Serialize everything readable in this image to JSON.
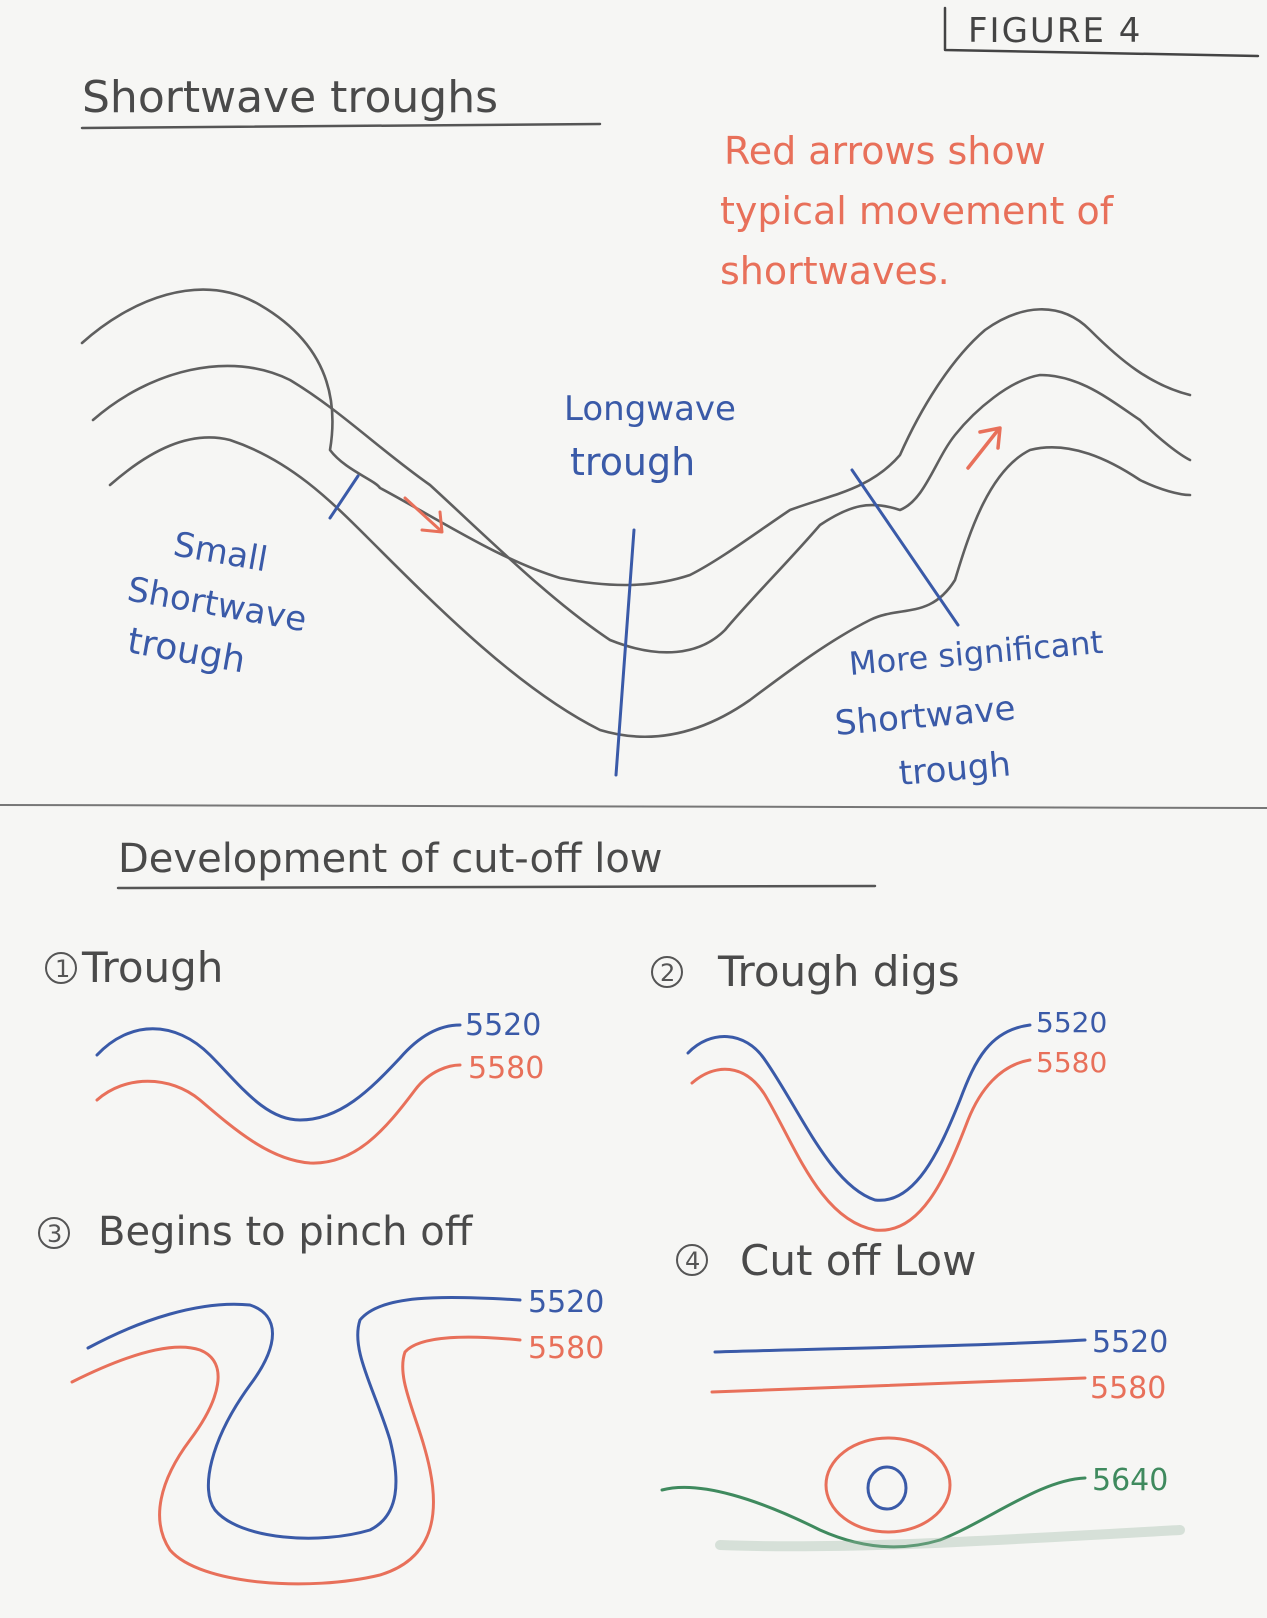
{
  "figure_label": "FIGURE 4",
  "top_section": {
    "title": "Shortwave troughs",
    "note_lines": [
      "Red arrows show",
      "typical movement of",
      "shortwaves."
    ],
    "longwave_label": [
      "Longwave",
      "trough"
    ],
    "small_shortwave_label": [
      "Small",
      "Shortwave",
      "trough"
    ],
    "significant_shortwave_label": [
      "More significant",
      "Shortwave",
      "trough"
    ]
  },
  "bottom_section": {
    "title": "Development of cut-off low",
    "panels": [
      {
        "number": "1",
        "title": "Trough",
        "contours": [
          "5520",
          "5580"
        ]
      },
      {
        "number": "2",
        "title": "Trough digs",
        "contours": [
          "5520",
          "5580"
        ]
      },
      {
        "number": "3",
        "title": "Begins to pinch off",
        "contours": [
          "5520",
          "5580"
        ]
      },
      {
        "number": "4",
        "title": "Cut off Low",
        "contours": [
          "5520",
          "5580",
          "5640"
        ]
      }
    ]
  },
  "colors": {
    "pencil": "#5f5f5f",
    "blue": "#3a5aa8",
    "red": "#e8705a",
    "green": "#3f8a5e",
    "ink": "#444444"
  }
}
